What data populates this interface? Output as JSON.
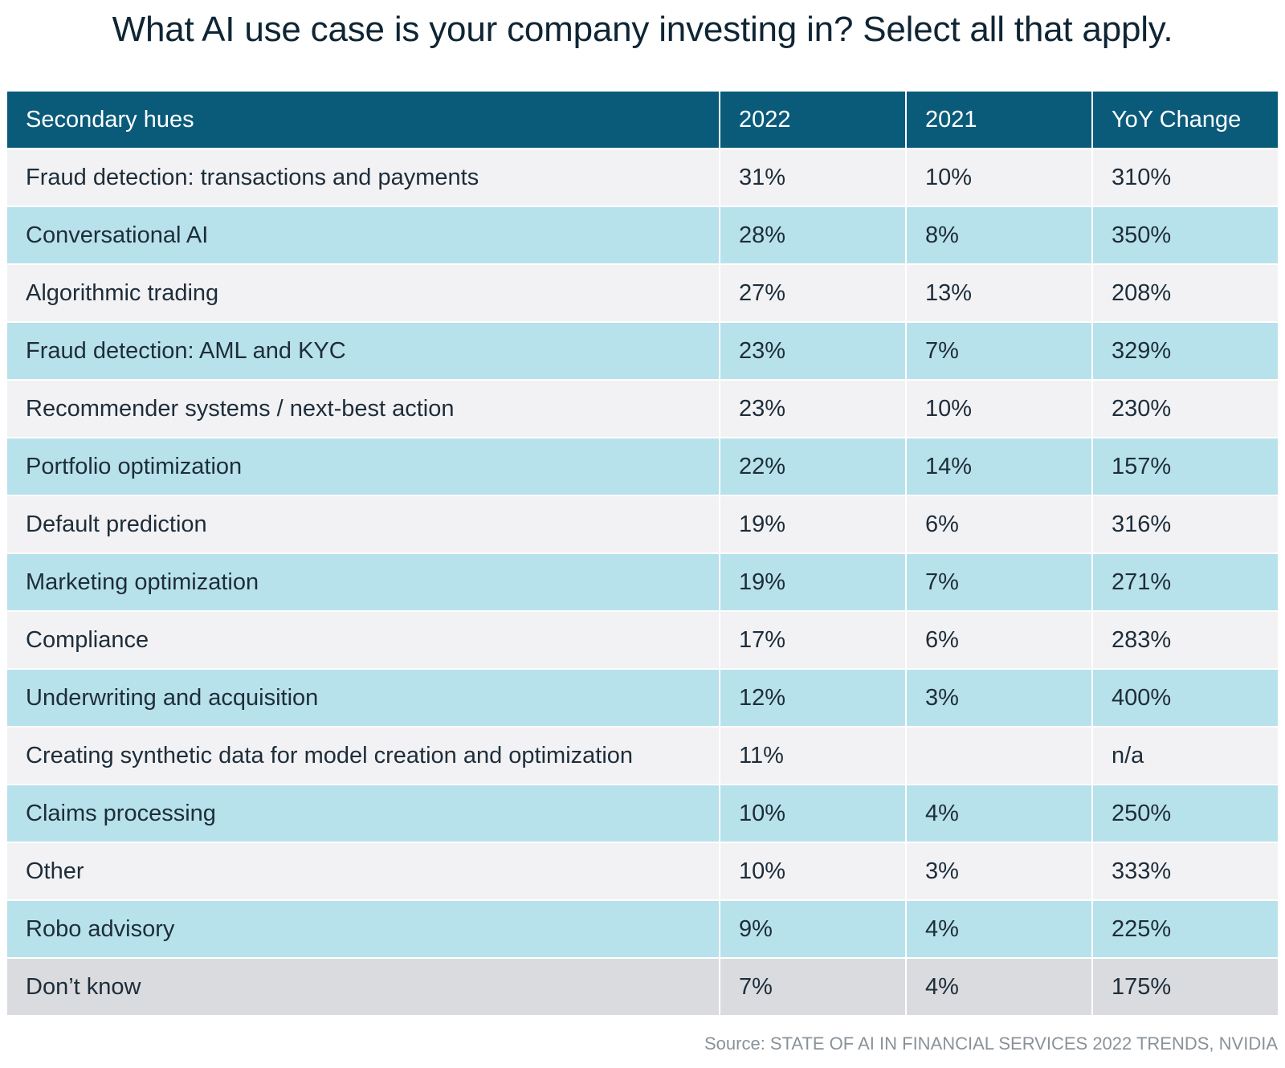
{
  "chart_data": {
    "type": "table",
    "title": "What AI use case is your company investing in? Select all that apply.",
    "columns": [
      "Secondary hues",
      "2022",
      "2021",
      "YoY Change"
    ],
    "rows": [
      [
        "Fraud detection: transactions and payments",
        "31%",
        "10%",
        "310%"
      ],
      [
        "Conversational AI",
        "28%",
        "8%",
        "350%"
      ],
      [
        "Algorithmic trading",
        "27%",
        "13%",
        "208%"
      ],
      [
        "Fraud detection: AML and KYC",
        "23%",
        "7%",
        "329%"
      ],
      [
        "Recommender systems / next-best action",
        "23%",
        "10%",
        "230%"
      ],
      [
        "Portfolio optimization",
        "22%",
        "14%",
        "157%"
      ],
      [
        "Default prediction",
        "19%",
        "6%",
        "316%"
      ],
      [
        "Marketing optimization",
        "19%",
        "7%",
        "271%"
      ],
      [
        "Compliance",
        "17%",
        "6%",
        "283%"
      ],
      [
        "Underwriting and acquisition",
        "12%",
        "3%",
        "400%"
      ],
      [
        "Creating synthetic data for model creation and optimization",
        "11%",
        "",
        "n/a"
      ],
      [
        "Claims processing",
        "10%",
        "4%",
        "250%"
      ],
      [
        "Other",
        "10%",
        "3%",
        "333%"
      ],
      [
        "Robo advisory",
        "9%",
        "4%",
        "225%"
      ],
      [
        "Don’t know",
        "7%",
        "4%",
        "175%"
      ]
    ],
    "source": "Source: STATE OF AI IN FINANCIAL SERVICES 2022 TRENDS, NVIDIA"
  },
  "colors": {
    "header_bg": "#0a5b7a",
    "row_light": "#f2f2f4",
    "row_accent": "#b8e2eb",
    "row_last": "#d9dbde"
  }
}
